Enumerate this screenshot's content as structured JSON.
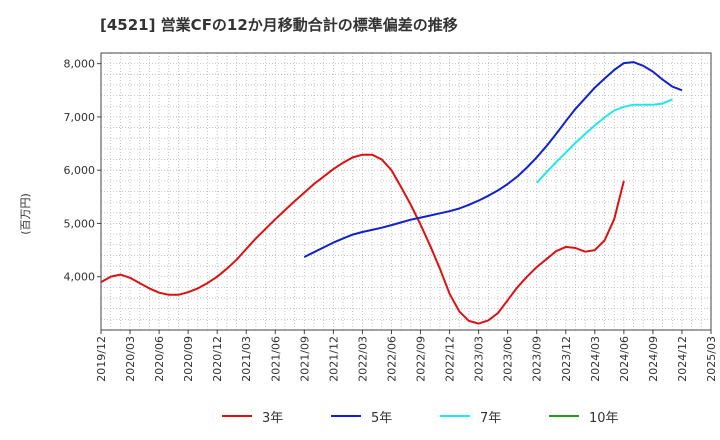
{
  "title": "[4521]  営業CFの12か月移動合計の標準偏差の推移",
  "chart_data": {
    "type": "line",
    "ylabel": "(百万円)",
    "x_ticks": [
      "2019/12",
      "2020/03",
      "2020/06",
      "2020/09",
      "2020/12",
      "2021/03",
      "2021/06",
      "2021/09",
      "2021/12",
      "2022/03",
      "2022/06",
      "2022/09",
      "2022/12",
      "2023/03",
      "2023/06",
      "2023/09",
      "2023/12",
      "2024/03",
      "2024/06",
      "2024/09",
      "2024/12",
      "2025/03"
    ],
    "y_ticks": [
      4000,
      5000,
      6000,
      7000,
      8000
    ],
    "ylim": [
      3000,
      8200
    ],
    "grid": true,
    "legend_position": "bottom",
    "series": [
      {
        "name": "3年",
        "color": "#dd1111",
        "start_index": 0,
        "values": [
          3900,
          4000,
          4040,
          3980,
          3880,
          3780,
          3700,
          3660,
          3660,
          3710,
          3780,
          3880,
          4000,
          4150,
          4320,
          4520,
          4720,
          4900,
          5080,
          5250,
          5420,
          5580,
          5740,
          5880,
          6020,
          6140,
          6240,
          6290,
          6290,
          6200,
          6000,
          5680,
          5350,
          4980,
          4580,
          4150,
          3680,
          3350,
          3170,
          3120,
          3180,
          3320,
          3560,
          3800,
          4000,
          4180,
          4330,
          4480,
          4560,
          4540,
          4470,
          4500,
          4680,
          5080,
          5800
        ]
      },
      {
        "name": "5年",
        "color": "#1122cc",
        "start_index": 21,
        "values": [
          4370,
          4460,
          4550,
          4640,
          4720,
          4790,
          4840,
          4880,
          4920,
          4970,
          5020,
          5070,
          5110,
          5150,
          5190,
          5230,
          5280,
          5350,
          5430,
          5520,
          5620,
          5740,
          5880,
          6050,
          6240,
          6450,
          6680,
          6920,
          7150,
          7350,
          7550,
          7720,
          7880,
          8010,
          8030,
          7960,
          7850,
          7700,
          7570,
          7500
        ]
      },
      {
        "name": "7年",
        "color": "#22e5ee",
        "start_index": 45,
        "values": [
          5760,
          5960,
          6150,
          6330,
          6510,
          6680,
          6840,
          6990,
          7120,
          7190,
          7230,
          7230,
          7230,
          7250,
          7330
        ]
      },
      {
        "name": "10年",
        "color": "#229922",
        "start_index": 0,
        "values": []
      }
    ]
  }
}
